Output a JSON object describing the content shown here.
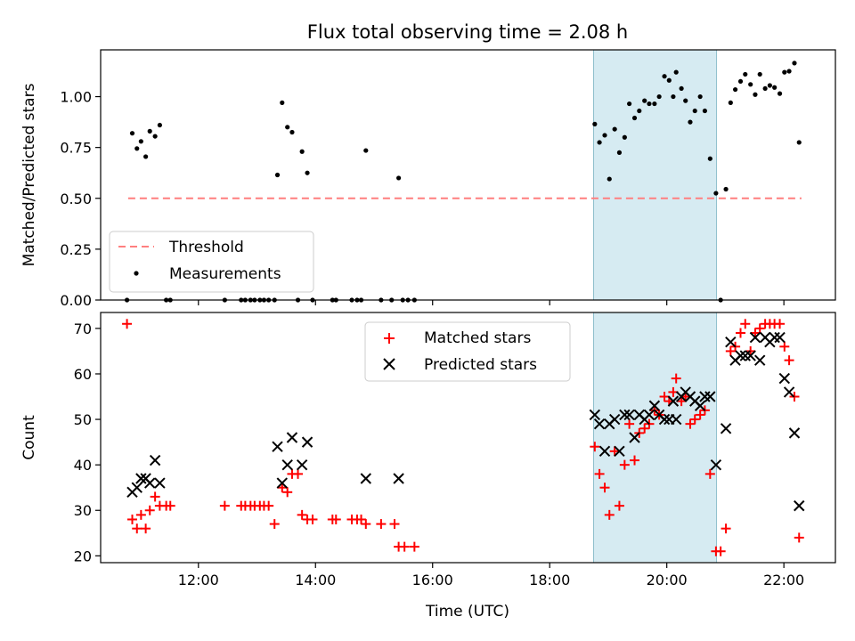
{
  "chart_data": [
    {
      "type": "scatter",
      "title": "Flux total observing time = 2.08 h",
      "xlabel": "",
      "ylabel": "Matched/Predicted stars",
      "xlim": [
        10.33,
        22.88
      ],
      "ylim": [
        0,
        1.23
      ],
      "yticks": [
        0,
        0.25,
        0.5,
        0.75,
        1.0
      ],
      "ytick_labels": [
        "0.00",
        "0.25",
        "0.50",
        "0.75",
        "1.00"
      ],
      "shaded_interval": [
        18.75,
        20.85
      ],
      "legend_location": "lower-left",
      "threshold": {
        "name": "Threshold",
        "value": 0.5,
        "x_range": [
          10.8,
          22.3
        ],
        "color": "#ff7f7f"
      },
      "series": [
        {
          "name": "Measurements",
          "color": "#000000",
          "points": [
            [
              10.78,
              0
            ],
            [
              10.87,
              0.82
            ],
            [
              10.95,
              0.745
            ],
            [
              11.02,
              0.78
            ],
            [
              11.1,
              0.705
            ],
            [
              11.17,
              0.83
            ],
            [
              11.26,
              0.805
            ],
            [
              11.34,
              0.86
            ],
            [
              11.45,
              0
            ],
            [
              11.52,
              0
            ],
            [
              12.45,
              0
            ],
            [
              12.73,
              0
            ],
            [
              12.8,
              0
            ],
            [
              12.89,
              0
            ],
            [
              12.96,
              0
            ],
            [
              13.05,
              0
            ],
            [
              13.12,
              0
            ],
            [
              13.2,
              0
            ],
            [
              13.3,
              0
            ],
            [
              13.35,
              0.615
            ],
            [
              13.43,
              0.97
            ],
            [
              13.52,
              0.85
            ],
            [
              13.6,
              0.825
            ],
            [
              13.7,
              0
            ],
            [
              13.77,
              0.73
            ],
            [
              13.86,
              0.625
            ],
            [
              13.95,
              0
            ],
            [
              14.29,
              0
            ],
            [
              14.35,
              0
            ],
            [
              14.62,
              0
            ],
            [
              14.71,
              0
            ],
            [
              14.78,
              0
            ],
            [
              14.86,
              0.735
            ],
            [
              15.12,
              0
            ],
            [
              15.3,
              0
            ],
            [
              15.42,
              0.6
            ],
            [
              15.49,
              0
            ],
            [
              15.58,
              0
            ],
            [
              15.69,
              0
            ],
            [
              18.77,
              0.865
            ],
            [
              18.85,
              0.775
            ],
            [
              18.94,
              0.81
            ],
            [
              19.02,
              0.595
            ],
            [
              19.11,
              0.84
            ],
            [
              19.19,
              0.725
            ],
            [
              19.28,
              0.8
            ],
            [
              19.36,
              0.965
            ],
            [
              19.45,
              0.895
            ],
            [
              19.53,
              0.93
            ],
            [
              19.62,
              0.98
            ],
            [
              19.7,
              0.965
            ],
            [
              19.79,
              0.965
            ],
            [
              19.87,
              1.0
            ],
            [
              19.96,
              1.1
            ],
            [
              20.04,
              1.08
            ],
            [
              20.11,
              1.0
            ],
            [
              20.16,
              1.12
            ],
            [
              20.25,
              1.04
            ],
            [
              20.32,
              0.98
            ],
            [
              20.4,
              0.875
            ],
            [
              20.48,
              0.93
            ],
            [
              20.57,
              1.0
            ],
            [
              20.65,
              0.93
            ],
            [
              20.74,
              0.695
            ],
            [
              20.84,
              0.525
            ],
            [
              20.92,
              0
            ],
            [
              21.01,
              0.545
            ],
            [
              21.09,
              0.97
            ],
            [
              21.17,
              1.035
            ],
            [
              21.26,
              1.075
            ],
            [
              21.34,
              1.11
            ],
            [
              21.43,
              1.06
            ],
            [
              21.51,
              1.01
            ],
            [
              21.59,
              1.11
            ],
            [
              21.68,
              1.04
            ],
            [
              21.76,
              1.055
            ],
            [
              21.84,
              1.045
            ],
            [
              21.93,
              1.015
            ],
            [
              22.01,
              1.12
            ],
            [
              22.09,
              1.125
            ],
            [
              22.18,
              1.165
            ],
            [
              22.26,
              0.775
            ]
          ]
        }
      ]
    },
    {
      "type": "scatter",
      "xlabel": "Time (UTC)",
      "ylabel": "Count",
      "xlim": [
        10.33,
        22.88
      ],
      "ylim": [
        18.5,
        73.5
      ],
      "xticks": [
        12,
        14,
        16,
        18,
        20,
        22
      ],
      "xtick_labels": [
        "12:00",
        "14:00",
        "16:00",
        "18:00",
        "20:00",
        "22:00"
      ],
      "yticks": [
        20,
        30,
        40,
        50,
        60,
        70
      ],
      "ytick_labels": [
        "20",
        "30",
        "40",
        "50",
        "60",
        "70"
      ],
      "shaded_interval": [
        18.75,
        20.85
      ],
      "legend_location": "upper-center",
      "series": [
        {
          "name": "Matched stars",
          "marker": "plus",
          "color": "#ff0000",
          "points": [
            [
              10.78,
              71
            ],
            [
              10.87,
              28
            ],
            [
              10.95,
              26
            ],
            [
              11.02,
              29
            ],
            [
              11.1,
              26
            ],
            [
              11.17,
              30
            ],
            [
              11.26,
              33
            ],
            [
              11.34,
              31
            ],
            [
              11.45,
              31
            ],
            [
              11.52,
              31
            ],
            [
              12.45,
              31
            ],
            [
              12.73,
              31
            ],
            [
              12.8,
              31
            ],
            [
              12.89,
              31
            ],
            [
              12.96,
              31
            ],
            [
              13.05,
              31
            ],
            [
              13.12,
              31
            ],
            [
              13.2,
              31
            ],
            [
              13.3,
              27
            ],
            [
              13.43,
              35
            ],
            [
              13.52,
              34
            ],
            [
              13.6,
              38
            ],
            [
              13.7,
              38
            ],
            [
              13.77,
              29
            ],
            [
              13.86,
              28
            ],
            [
              13.95,
              28
            ],
            [
              14.29,
              28
            ],
            [
              14.35,
              28
            ],
            [
              14.62,
              28
            ],
            [
              14.71,
              28
            ],
            [
              14.78,
              28
            ],
            [
              14.86,
              27
            ],
            [
              15.12,
              27
            ],
            [
              15.35,
              27
            ],
            [
              15.42,
              22
            ],
            [
              15.52,
              22
            ],
            [
              15.69,
              22
            ],
            [
              18.77,
              44
            ],
            [
              18.85,
              38
            ],
            [
              18.94,
              35
            ],
            [
              19.02,
              29
            ],
            [
              19.11,
              43
            ],
            [
              19.19,
              31
            ],
            [
              19.28,
              40
            ],
            [
              19.36,
              49
            ],
            [
              19.45,
              41
            ],
            [
              19.53,
              47
            ],
            [
              19.62,
              48
            ],
            [
              19.7,
              49
            ],
            [
              19.79,
              52
            ],
            [
              19.87,
              51
            ],
            [
              19.96,
              55
            ],
            [
              20.04,
              54
            ],
            [
              20.11,
              56
            ],
            [
              20.16,
              59
            ],
            [
              20.25,
              54
            ],
            [
              20.32,
              55
            ],
            [
              20.4,
              49
            ],
            [
              20.48,
              50
            ],
            [
              20.57,
              51
            ],
            [
              20.65,
              52
            ],
            [
              20.74,
              38
            ],
            [
              20.84,
              21
            ],
            [
              20.92,
              21
            ],
            [
              21.01,
              26
            ],
            [
              21.09,
              65
            ],
            [
              21.17,
              66
            ],
            [
              21.26,
              69
            ],
            [
              21.34,
              71
            ],
            [
              21.43,
              65
            ],
            [
              21.51,
              69
            ],
            [
              21.59,
              70
            ],
            [
              21.68,
              71
            ],
            [
              21.76,
              71
            ],
            [
              21.84,
              71
            ],
            [
              21.93,
              71
            ],
            [
              22.01,
              66
            ],
            [
              22.09,
              63
            ],
            [
              22.18,
              55
            ],
            [
              22.26,
              24
            ]
          ]
        },
        {
          "name": "Predicted stars",
          "marker": "x",
          "color": "#000000",
          "points": [
            [
              10.87,
              34
            ],
            [
              10.95,
              35
            ],
            [
              11.02,
              37
            ],
            [
              11.1,
              37
            ],
            [
              11.17,
              36
            ],
            [
              11.26,
              41
            ],
            [
              11.34,
              36
            ],
            [
              13.35,
              44
            ],
            [
              13.43,
              36
            ],
            [
              13.52,
              40
            ],
            [
              13.6,
              46
            ],
            [
              13.77,
              40
            ],
            [
              13.86,
              45
            ],
            [
              14.86,
              37
            ],
            [
              15.42,
              37
            ],
            [
              18.77,
              51
            ],
            [
              18.85,
              49
            ],
            [
              18.94,
              43
            ],
            [
              19.02,
              49
            ],
            [
              19.11,
              50
            ],
            [
              19.19,
              43
            ],
            [
              19.28,
              51
            ],
            [
              19.36,
              51
            ],
            [
              19.45,
              46
            ],
            [
              19.53,
              51
            ],
            [
              19.62,
              50
            ],
            [
              19.7,
              51
            ],
            [
              19.79,
              53
            ],
            [
              19.87,
              51
            ],
            [
              19.96,
              50
            ],
            [
              20.04,
              50
            ],
            [
              20.11,
              54
            ],
            [
              20.16,
              50
            ],
            [
              20.25,
              55
            ],
            [
              20.32,
              56
            ],
            [
              20.4,
              55
            ],
            [
              20.48,
              54
            ],
            [
              20.57,
              53
            ],
            [
              20.65,
              55
            ],
            [
              20.74,
              55
            ],
            [
              20.84,
              40
            ],
            [
              21.01,
              48
            ],
            [
              21.09,
              67
            ],
            [
              21.17,
              63
            ],
            [
              21.26,
              64
            ],
            [
              21.34,
              64
            ],
            [
              21.43,
              64
            ],
            [
              21.51,
              68
            ],
            [
              21.59,
              63
            ],
            [
              21.68,
              68
            ],
            [
              21.76,
              67
            ],
            [
              21.84,
              68
            ],
            [
              21.93,
              68
            ],
            [
              22.01,
              59
            ],
            [
              22.09,
              56
            ],
            [
              22.18,
              47
            ],
            [
              22.26,
              31
            ]
          ]
        }
      ]
    }
  ]
}
